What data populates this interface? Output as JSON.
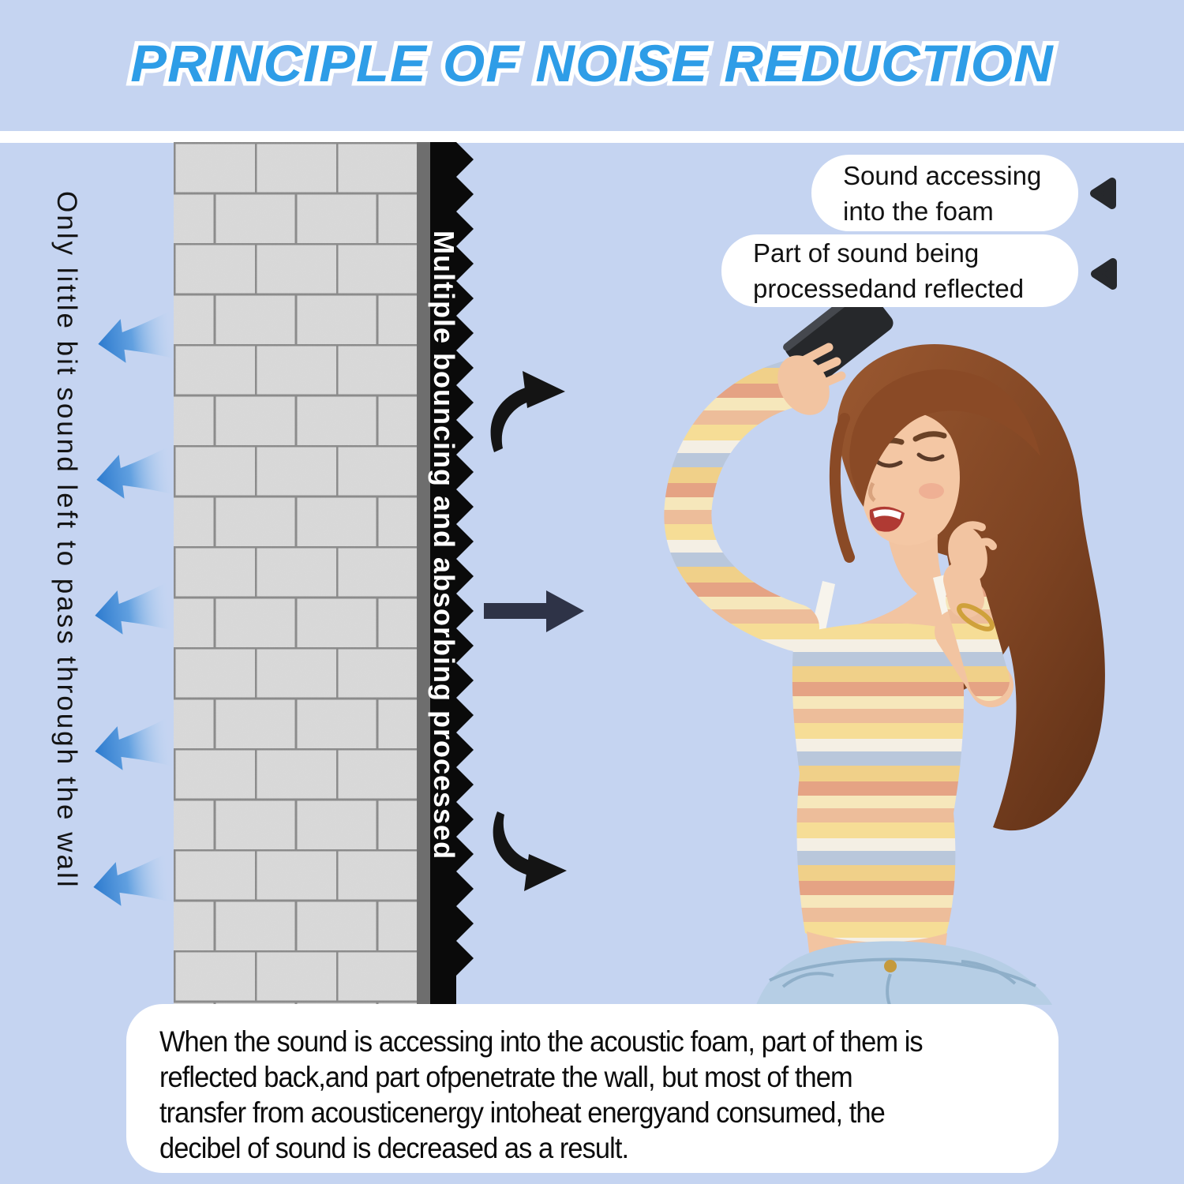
{
  "title": "PRINCIPLE OF NOISE REDUCTION",
  "wall_diagram": {
    "left_label": "Only little bit sound left to pass through the wall",
    "foam_label": "Multiple bouncing and absorbing processed"
  },
  "bubbles": [
    {
      "lines": [
        "Sound accessing",
        "into the foam"
      ]
    },
    {
      "lines": [
        "Part of sound being",
        "processedand reflected"
      ]
    }
  ],
  "description": {
    "lines": [
      "When the sound is accessing into the acoustic foam, part of them is",
      "reflected back,and part ofpenetrate the wall, but most of them",
      "transfer from acousticenergy intoheat energyand consumed, the",
      "decibel of sound is decreased as a result."
    ]
  },
  "icons": {
    "left-sound-arrow-icon": "fading blue arrow pointing left (sound passing through wall)",
    "bounce-arrow-up-icon": "black curved arrow bouncing up-right",
    "bounce-arrow-down-icon": "black curved arrow bouncing down-right",
    "absorb-arrow-icon": "dark straight arrow pointing right into foam",
    "bubble-pointer-icon": "rounded black triangle pointing left",
    "acoustic-foam-icon": "black sawtooth foam layer",
    "brick-wall-icon": "gray brick wall",
    "phone-icon": "black smartphone held up",
    "woman-illustration": "smiling woman with wavy brown hair, striped crop top and jeans"
  },
  "colors": {
    "background": "#c5d4f1",
    "title_blue": "#2e9de7",
    "title_outline": "#ffffff",
    "wall_brick": "#dadada",
    "wall_mortar": "#8a8a8a",
    "wall_backing": "#6e6e6e",
    "foam_black": "#0a0a0a",
    "blue_arrow": "#2c7ace",
    "dark_arrow": "#2e3347",
    "bubble_bg": "#ffffff",
    "denim": "#b6cee5",
    "skin": "#f2c4a1",
    "hair": "#8a4b28"
  }
}
